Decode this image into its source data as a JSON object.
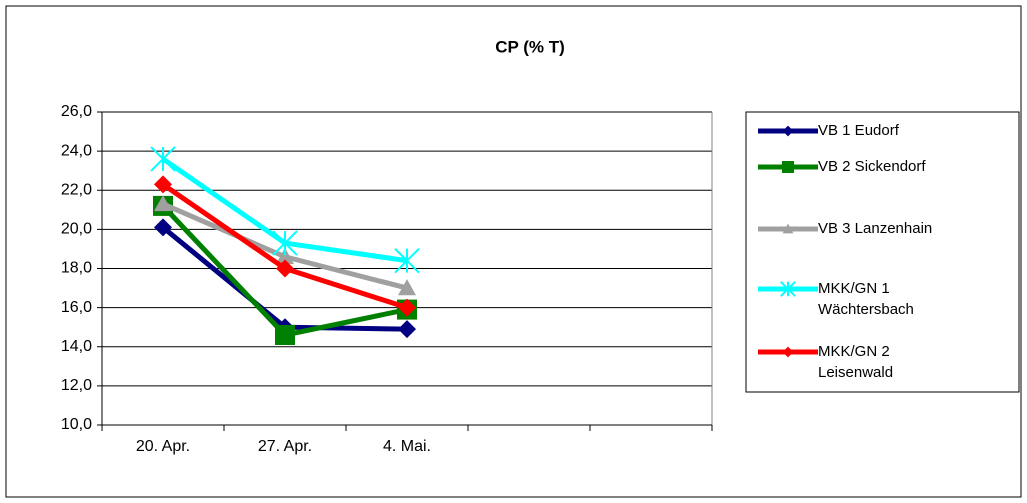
{
  "chart_data": {
    "type": "line",
    "title": "CP (% T)",
    "categories": [
      "20. Apr.",
      "27. Apr.",
      "4. Mai.",
      null,
      null
    ],
    "series": [
      {
        "name": "VB 1 Eudorf",
        "color": "#000080",
        "marker": "diamond",
        "values": [
          20.1,
          15.0,
          14.9,
          null,
          null
        ]
      },
      {
        "name": "VB 2 Sickendorf",
        "color": "#008000",
        "marker": "square",
        "values": [
          21.2,
          14.6,
          15.9,
          null,
          null
        ]
      },
      {
        "name": "VB 3 Lanzenhain",
        "color": "#a0a0a0",
        "marker": "triangle",
        "values": [
          21.3,
          18.6,
          17.0,
          null,
          null
        ]
      },
      {
        "name": "MKK/GN 1 Wächtersbach",
        "color": "#00ffff",
        "marker": "star",
        "values": [
          23.6,
          19.3,
          18.4,
          null,
          null
        ]
      },
      {
        "name": "MKK/GN 2 Leisenwald",
        "color": "#ff0000",
        "marker": "diamond",
        "values": [
          22.3,
          18.0,
          16.0,
          null,
          null
        ]
      }
    ],
    "ylim": [
      10,
      26
    ],
    "yticks": [
      {
        "value": 10,
        "label": "10,0"
      },
      {
        "value": 12,
        "label": "12,0"
      },
      {
        "value": 14,
        "label": "14,0"
      },
      {
        "value": 16,
        "label": "16,0"
      },
      {
        "value": 18,
        "label": "18,0"
      },
      {
        "value": 20,
        "label": "20,0"
      },
      {
        "value": 22,
        "label": "22,0"
      },
      {
        "value": 24,
        "label": "24,0"
      },
      {
        "value": 26,
        "label": "26,0"
      }
    ],
    "grid": true,
    "legend": "right"
  }
}
